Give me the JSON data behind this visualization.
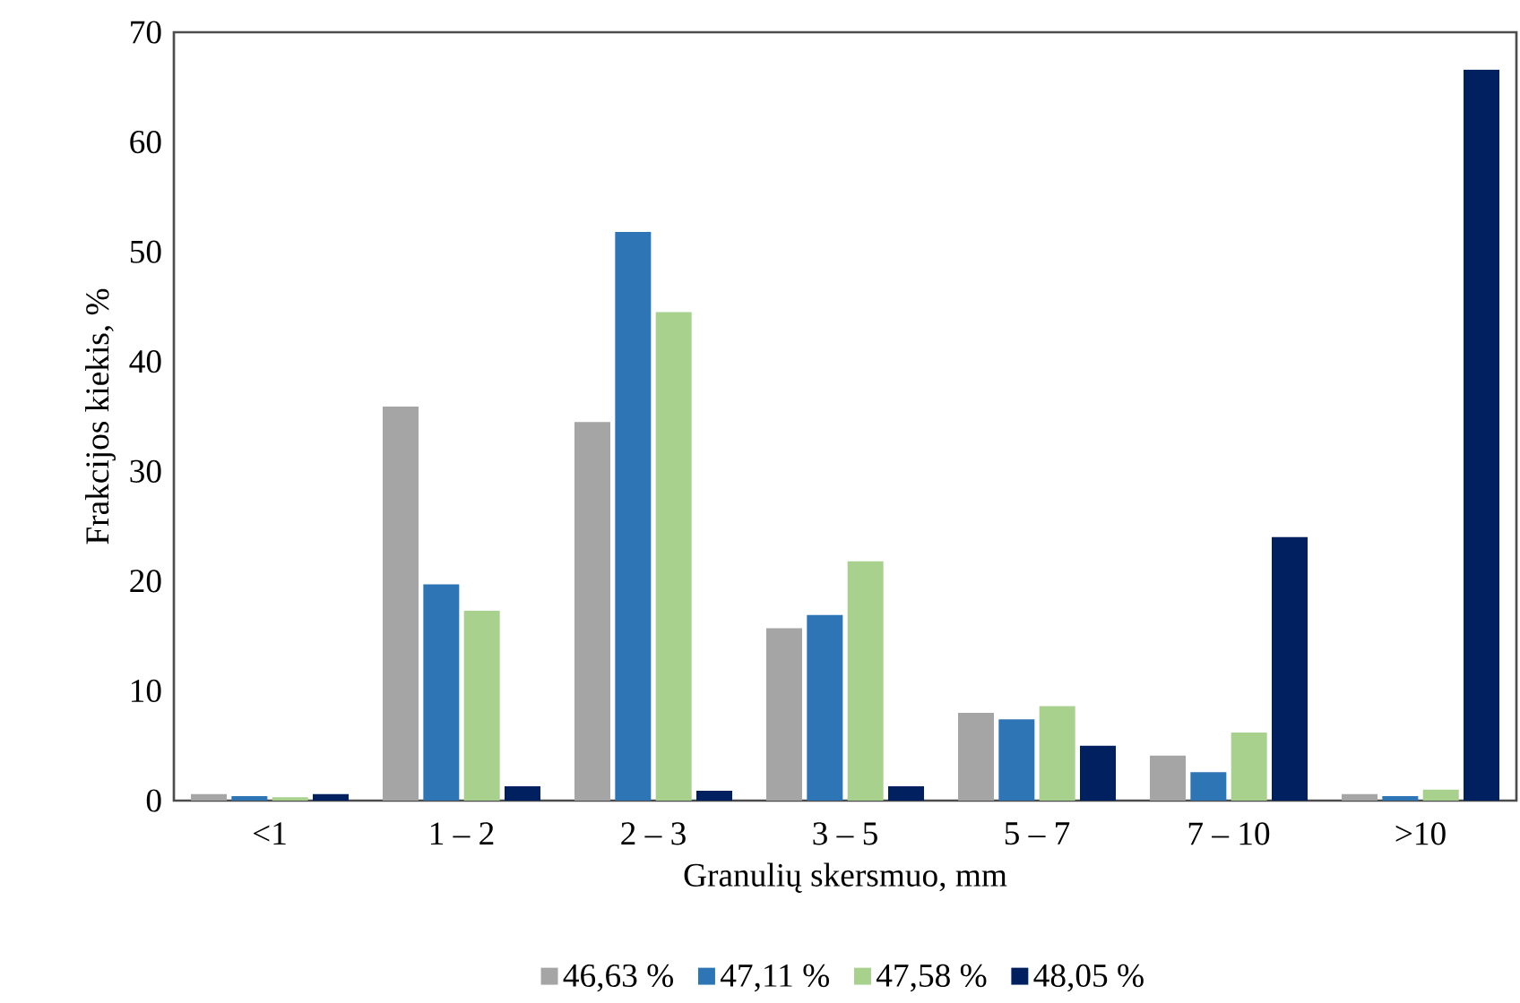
{
  "chart_data": {
    "type": "bar",
    "xlabel": "Granulių skersmuo, mm",
    "ylabel": "Frakcijos kiekis, %",
    "categories": [
      "<1",
      "1 – 2",
      "2 – 3",
      "3 – 5",
      "5 – 7",
      "7 – 10",
      ">10"
    ],
    "series": [
      {
        "name": "46,63 %",
        "color": "#a5a5a5",
        "values": [
          0.6,
          35.9,
          34.5,
          15.7,
          8.0,
          4.1,
          0.6
        ]
      },
      {
        "name": "47,11 %",
        "color": "#2e75b6",
        "values": [
          0.4,
          19.7,
          51.8,
          16.9,
          7.4,
          2.6,
          0.4
        ]
      },
      {
        "name": "47,58 %",
        "color": "#a9d18e",
        "values": [
          0.3,
          17.3,
          44.5,
          21.8,
          8.6,
          6.2,
          1.0
        ]
      },
      {
        "name": "48,05 %",
        "color": "#002060",
        "values": [
          0.6,
          1.3,
          0.9,
          1.3,
          5.0,
          24.0,
          66.6
        ]
      }
    ],
    "ylim": [
      0,
      70
    ],
    "yticks": [
      0,
      10,
      20,
      30,
      40,
      50,
      60,
      70
    ],
    "grid": false,
    "legend": "bottom"
  }
}
